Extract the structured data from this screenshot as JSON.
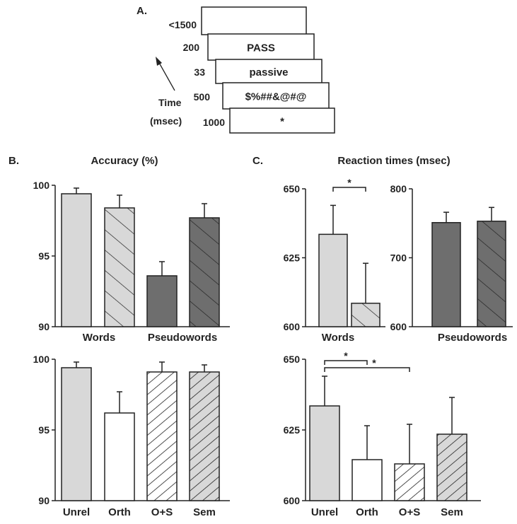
{
  "panel_labels": {
    "a": "A.",
    "b": "B.",
    "c": "C."
  },
  "titles": {
    "accuracy": "Accuracy (%)",
    "rt": "Reaction times (msec)"
  },
  "time_axis": {
    "line1": "Time",
    "line2": "(msec)"
  },
  "sequence": [
    {
      "duration": "<1500",
      "content": ""
    },
    {
      "duration": "200",
      "content": "PASS"
    },
    {
      "duration": "33",
      "content": "passive"
    },
    {
      "duration": "500",
      "content": "$%##&@#@"
    },
    {
      "duration": "1000",
      "content": "*"
    }
  ],
  "sig_marker": "*",
  "colors": {
    "light_gray": "#d8d8d8",
    "dark_gray": "#6e6e6e",
    "white": "#ffffff",
    "ink": "#222222"
  },
  "chart_data": [
    {
      "id": "B-top",
      "type": "bar",
      "title": "Accuracy (%)",
      "yticks": [
        "90",
        "95",
        "100"
      ],
      "ylim": [
        90,
        100
      ],
      "group_labels": [
        "Words",
        "Pseudowords"
      ],
      "bars": [
        {
          "value": 99.4,
          "error": 0.4,
          "fill": "light",
          "pattern": "none"
        },
        {
          "value": 98.4,
          "error": 0.9,
          "fill": "light",
          "pattern": "hatch"
        },
        {
          "value": 93.6,
          "error": 1.0,
          "fill": "dark",
          "pattern": "none"
        },
        {
          "value": 97.7,
          "error": 1.0,
          "fill": "dark",
          "pattern": "hatch"
        }
      ]
    },
    {
      "id": "B-bottom",
      "type": "bar",
      "yticks": [
        "90",
        "95",
        "100"
      ],
      "ylim": [
        90,
        100
      ],
      "categories": [
        "Unrel",
        "Orth",
        "O+S",
        "Sem"
      ],
      "bars": [
        {
          "value": 99.4,
          "error": 0.4,
          "fill": "light",
          "pattern": "none"
        },
        {
          "value": 96.2,
          "error": 1.5,
          "fill": "white",
          "pattern": "none"
        },
        {
          "value": 99.1,
          "error": 0.7,
          "fill": "white",
          "pattern": "dense-hatch"
        },
        {
          "value": 99.1,
          "error": 0.5,
          "fill": "light",
          "pattern": "dense-hatch"
        }
      ]
    },
    {
      "id": "C-top-words",
      "type": "bar",
      "title": "Reaction times (msec)",
      "yticks": [
        "600",
        "625",
        "650"
      ],
      "ylim": [
        600,
        650
      ],
      "group_labels": [
        "Words"
      ],
      "bars": [
        {
          "value": 633.5,
          "error": 10.5,
          "fill": "light",
          "pattern": "none"
        },
        {
          "value": 608.5,
          "error": 14.5,
          "fill": "light",
          "pattern": "hatch"
        }
      ],
      "significance": [
        {
          "from": 0,
          "to": 1,
          "label": "*"
        }
      ]
    },
    {
      "id": "C-top-pseudowords",
      "type": "bar",
      "yticks": [
        "600",
        "700",
        "800"
      ],
      "ylim": [
        600,
        800
      ],
      "group_labels": [
        "Pseudowords"
      ],
      "bars": [
        {
          "value": 751,
          "error": 15,
          "fill": "dark",
          "pattern": "none"
        },
        {
          "value": 753,
          "error": 20,
          "fill": "dark",
          "pattern": "hatch"
        }
      ]
    },
    {
      "id": "C-bottom",
      "type": "bar",
      "yticks": [
        "600",
        "625",
        "650"
      ],
      "ylim": [
        600,
        650
      ],
      "categories": [
        "Unrel",
        "Orth",
        "O+S",
        "Sem"
      ],
      "bars": [
        {
          "value": 633.5,
          "error": 10.5,
          "fill": "light",
          "pattern": "none"
        },
        {
          "value": 614.5,
          "error": 12,
          "fill": "white",
          "pattern": "none"
        },
        {
          "value": 613,
          "error": 14,
          "fill": "white",
          "pattern": "dense-hatch"
        },
        {
          "value": 623.5,
          "error": 13,
          "fill": "light",
          "pattern": "dense-hatch"
        }
      ],
      "significance": [
        {
          "from": 0,
          "to": 1,
          "label": "*"
        },
        {
          "from": 0,
          "to": 2,
          "label": "*"
        }
      ]
    }
  ]
}
